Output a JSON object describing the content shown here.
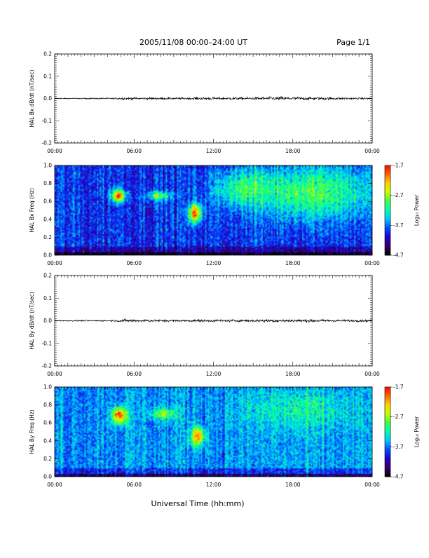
{
  "header": {
    "title": "2005/11/08  00:00–24:00 UT",
    "page": "Page 1/1"
  },
  "footer": {
    "xlabel": "Universal Time (hh:mm)"
  },
  "time_ticks": [
    "00:00",
    "06:00",
    "12:00",
    "18:00",
    "00:00"
  ],
  "colormap": [
    "#000000",
    "#3a006a",
    "#2000d0",
    "#0050ff",
    "#00c8ff",
    "#00ffb0",
    "#40ff40",
    "#c8ff00",
    "#ffd000",
    "#ff6000",
    "#ff0000"
  ],
  "chart_data": [
    {
      "id": "bx-dbdt",
      "type": "line",
      "ylabel": "HAL Bx dB/dt (nT/sec)",
      "xlim": [
        "00:00",
        "24:00"
      ],
      "ylim": [
        -0.2,
        0.2
      ],
      "y_ticks": [
        "-0.2",
        "-0.1",
        "0.0",
        "0.1",
        "0.2"
      ],
      "y_tick_values": [
        -0.2,
        -0.1,
        0.0,
        0.1,
        0.2
      ],
      "baseline": 0.0,
      "amplitude_envelope": [
        {
          "t": 0,
          "amp": 0.002
        },
        {
          "t": 4.5,
          "amp": 0.003
        },
        {
          "t": 5.0,
          "amp": 0.005
        },
        {
          "t": 9.5,
          "amp": 0.004
        },
        {
          "t": 11,
          "amp": 0.006
        },
        {
          "t": 14,
          "amp": 0.005
        },
        {
          "t": 17,
          "amp": 0.008
        },
        {
          "t": 18.5,
          "amp": 0.007
        },
        {
          "t": 21,
          "amp": 0.005
        },
        {
          "t": 24,
          "amp": 0.004
        }
      ]
    },
    {
      "id": "bx-spectrogram",
      "type": "heatmap",
      "ylabel": "HAL Bx Freq (Hz)",
      "xlim": [
        "00:00",
        "24:00"
      ],
      "ylim": [
        0.0,
        1.0
      ],
      "y_ticks": [
        "0.0",
        "0.2",
        "0.4",
        "0.6",
        "0.8",
        "1.0"
      ],
      "y_tick_values": [
        0.0,
        0.2,
        0.4,
        0.6,
        0.8,
        1.0
      ],
      "colorbar": {
        "label": "Log₁₀ Power",
        "ticks": [
          "-1.7",
          "-2.7",
          "-3.7",
          "-4.7"
        ],
        "tick_values": [
          -1.7,
          -2.7,
          -3.7,
          -4.7
        ],
        "range": [
          -4.7,
          -1.7
        ]
      },
      "background_power": -3.9,
      "features": [
        {
          "t": 4.8,
          "f": 0.66,
          "dt": 0.5,
          "df": 0.07,
          "power": -1.9
        },
        {
          "t": 7.8,
          "f": 0.66,
          "dt": 1.0,
          "df": 0.05,
          "power": -2.9
        },
        {
          "t": 10.6,
          "f": 0.47,
          "dt": 0.5,
          "df": 0.1,
          "power": -2.0
        },
        {
          "t": 19.5,
          "f": 0.7,
          "dt": 4.5,
          "df": 0.3,
          "power": -2.9
        },
        {
          "t": 14.0,
          "f": 0.75,
          "dt": 2.0,
          "df": 0.2,
          "power": -3.2
        }
      ]
    },
    {
      "id": "by-dbdt",
      "type": "line",
      "ylabel": "HAL By dB/dt (nT/sec)",
      "xlim": [
        "00:00",
        "24:00"
      ],
      "ylim": [
        -0.2,
        0.2
      ],
      "y_ticks": [
        "-0.2",
        "-0.1",
        "0.0",
        "0.1",
        "0.2"
      ],
      "y_tick_values": [
        -0.2,
        -0.1,
        0.0,
        0.1,
        0.2
      ],
      "baseline": 0.0,
      "amplitude_envelope": [
        {
          "t": 0,
          "amp": 0.002
        },
        {
          "t": 4.5,
          "amp": 0.003
        },
        {
          "t": 5.0,
          "amp": 0.006
        },
        {
          "t": 9.5,
          "amp": 0.004
        },
        {
          "t": 11,
          "amp": 0.005
        },
        {
          "t": 14,
          "amp": 0.005
        },
        {
          "t": 18,
          "amp": 0.007
        },
        {
          "t": 21,
          "amp": 0.005
        },
        {
          "t": 24,
          "amp": 0.004
        }
      ]
    },
    {
      "id": "by-spectrogram",
      "type": "heatmap",
      "ylabel": "HAL By Freq (Hz)",
      "xlim": [
        "00:00",
        "24:00"
      ],
      "ylim": [
        0.0,
        1.0
      ],
      "y_ticks": [
        "0.0",
        "0.2",
        "0.4",
        "0.6",
        "0.8",
        "1.0"
      ],
      "y_tick_values": [
        0.0,
        0.2,
        0.4,
        0.6,
        0.8,
        1.0
      ],
      "colorbar": {
        "label": "Log₁₀ Power",
        "ticks": [
          "-1.7",
          "-2.7",
          "-3.7",
          "-4.7"
        ],
        "tick_values": [
          -1.7,
          -2.7,
          -3.7,
          -4.7
        ],
        "range": [
          -4.7,
          -1.7
        ]
      },
      "background_power": -3.6,
      "features": [
        {
          "t": 4.9,
          "f": 0.68,
          "dt": 0.55,
          "df": 0.09,
          "power": -1.8
        },
        {
          "t": 8.2,
          "f": 0.7,
          "dt": 1.0,
          "df": 0.06,
          "power": -2.7
        },
        {
          "t": 10.8,
          "f": 0.45,
          "dt": 0.5,
          "df": 0.1,
          "power": -2.0
        },
        {
          "t": 18.5,
          "f": 0.75,
          "dt": 4.0,
          "df": 0.2,
          "power": -3.2
        }
      ]
    }
  ]
}
